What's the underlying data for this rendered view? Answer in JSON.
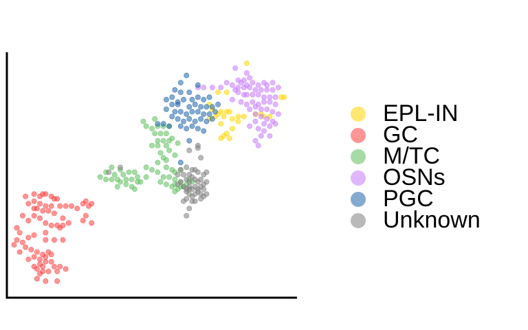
{
  "chart_data": {
    "type": "scatter",
    "title": "",
    "xlabel": "",
    "ylabel": "",
    "xlim": [
      0,
      100
    ],
    "ylim": [
      0,
      100
    ],
    "axes": "left and bottom lines only, no ticks or tick labels",
    "grid": false,
    "legend_position": "right",
    "marker_opacity": 0.55,
    "series": [
      {
        "name": "EPL-IN",
        "color": "#FFD700",
        "points": [
          [
            83,
            96
          ],
          [
            73,
            84
          ],
          [
            76,
            84
          ],
          [
            70,
            79
          ],
          [
            71,
            77
          ],
          [
            72,
            74
          ],
          [
            70,
            73
          ],
          [
            73,
            75
          ],
          [
            74,
            76
          ],
          [
            75,
            74
          ],
          [
            76,
            76
          ],
          [
            77,
            76
          ],
          [
            74,
            71
          ],
          [
            78,
            73
          ],
          [
            80,
            74
          ],
          [
            82,
            74
          ],
          [
            78,
            69
          ],
          [
            80,
            72
          ],
          [
            95,
            82
          ],
          [
            96,
            82
          ],
          [
            86,
            75
          ],
          [
            88,
            75
          ],
          [
            89,
            74
          ],
          [
            91,
            74
          ],
          [
            74,
            65
          ],
          [
            75,
            66
          ],
          [
            76,
            67
          ],
          [
            77,
            65
          ]
        ]
      },
      {
        "name": "GC",
        "color": "#FF4040",
        "points": [
          [
            6,
            41
          ],
          [
            9,
            42
          ],
          [
            11,
            41
          ],
          [
            12,
            42
          ],
          [
            13,
            42
          ],
          [
            15,
            41
          ],
          [
            16,
            40
          ],
          [
            17,
            40
          ],
          [
            7,
            38
          ],
          [
            9,
            39
          ],
          [
            11,
            38
          ],
          [
            13,
            37
          ],
          [
            15,
            37
          ],
          [
            18,
            37
          ],
          [
            9,
            36
          ],
          [
            10,
            36
          ],
          [
            12,
            35
          ],
          [
            14,
            35
          ],
          [
            16,
            34
          ],
          [
            20,
            37
          ],
          [
            22,
            37
          ],
          [
            24,
            36
          ],
          [
            26,
            38
          ],
          [
            27,
            39
          ],
          [
            28,
            37
          ],
          [
            29,
            38
          ],
          [
            27,
            33
          ],
          [
            26,
            31
          ],
          [
            29,
            30
          ],
          [
            9,
            33
          ],
          [
            11,
            32
          ],
          [
            13,
            30
          ],
          [
            15,
            29
          ],
          [
            17,
            29
          ],
          [
            19,
            29
          ],
          [
            21,
            30
          ],
          [
            5,
            33
          ],
          [
            7,
            31
          ],
          [
            3,
            28
          ],
          [
            4,
            26
          ],
          [
            7,
            24
          ],
          [
            9,
            25
          ],
          [
            13,
            26
          ],
          [
            13,
            23
          ],
          [
            16,
            23
          ],
          [
            19,
            23
          ],
          [
            5,
            22
          ],
          [
            6,
            20
          ],
          [
            4,
            18
          ],
          [
            8,
            19
          ],
          [
            10,
            18
          ],
          [
            12,
            17
          ],
          [
            14,
            18
          ],
          [
            9,
            16
          ],
          [
            11,
            15
          ],
          [
            13,
            16
          ],
          [
            15,
            17
          ],
          [
            7,
            15
          ],
          [
            11,
            13
          ],
          [
            13,
            14
          ],
          [
            15,
            14
          ],
          [
            16,
            12
          ],
          [
            9,
            12
          ],
          [
            12,
            10
          ],
          [
            14,
            10
          ],
          [
            17,
            10
          ],
          [
            11,
            9
          ],
          [
            18,
            12
          ],
          [
            10,
            7
          ],
          [
            13,
            6
          ],
          [
            17,
            6
          ],
          [
            20,
            11
          ],
          [
            3,
            23
          ],
          [
            2,
            21
          ],
          [
            19,
            32
          ],
          [
            18,
            28
          ],
          [
            10,
            11
          ],
          [
            12,
            12
          ]
        ]
      },
      {
        "name": "M/TC",
        "color": "#5FBF5F",
        "points": [
          [
            47,
            72
          ],
          [
            51,
            73
          ],
          [
            48,
            70
          ],
          [
            50,
            69
          ],
          [
            52,
            70
          ],
          [
            54,
            70
          ],
          [
            56,
            70
          ],
          [
            51,
            67
          ],
          [
            53,
            67
          ],
          [
            55,
            67
          ],
          [
            52,
            64
          ],
          [
            54,
            64
          ],
          [
            56,
            64
          ],
          [
            57,
            65
          ],
          [
            50,
            62
          ],
          [
            52,
            62
          ],
          [
            55,
            62
          ],
          [
            59,
            63
          ],
          [
            53,
            59
          ],
          [
            56,
            60
          ],
          [
            54,
            57
          ],
          [
            58,
            58
          ],
          [
            52,
            55
          ],
          [
            55,
            56
          ],
          [
            36,
            53
          ],
          [
            39,
            52
          ],
          [
            34,
            51
          ],
          [
            37,
            50
          ],
          [
            40,
            50
          ],
          [
            42,
            51
          ],
          [
            44,
            51
          ],
          [
            45,
            49
          ],
          [
            32,
            49
          ],
          [
            34,
            48
          ],
          [
            36,
            48
          ],
          [
            38,
            48
          ],
          [
            39,
            47
          ],
          [
            41,
            48
          ],
          [
            43,
            48
          ],
          [
            46,
            47
          ],
          [
            48,
            49
          ],
          [
            41,
            46
          ],
          [
            43,
            45
          ],
          [
            44,
            44
          ],
          [
            38,
            45
          ],
          [
            45,
            47
          ],
          [
            55,
            53
          ],
          [
            57,
            52
          ],
          [
            58,
            51
          ],
          [
            60,
            52
          ],
          [
            52,
            51
          ],
          [
            54,
            49
          ],
          [
            56,
            49
          ],
          [
            58,
            48
          ],
          [
            53,
            47
          ],
          [
            55,
            46
          ],
          [
            58,
            46
          ],
          [
            60,
            45
          ],
          [
            59,
            44
          ],
          [
            61,
            45
          ],
          [
            62,
            46
          ],
          [
            63,
            48
          ],
          [
            64,
            47
          ],
          [
            60,
            47
          ],
          [
            57,
            45
          ],
          [
            58,
            43
          ],
          [
            48,
            53
          ],
          [
            50,
            52
          ]
        ]
      },
      {
        "name": "OSNs",
        "color": "#C77CFF",
        "points": [
          [
            79,
            94
          ],
          [
            83,
            92
          ],
          [
            84,
            90
          ],
          [
            80,
            89
          ],
          [
            82,
            89
          ],
          [
            85,
            88
          ],
          [
            87,
            87
          ],
          [
            89,
            88
          ],
          [
            90,
            87
          ],
          [
            92,
            88
          ],
          [
            76,
            88
          ],
          [
            78,
            87
          ],
          [
            80,
            86
          ],
          [
            82,
            86
          ],
          [
            84,
            86
          ],
          [
            86,
            85
          ],
          [
            88,
            85
          ],
          [
            90,
            85
          ],
          [
            92,
            85
          ],
          [
            94,
            86
          ],
          [
            71,
            86
          ],
          [
            74,
            86
          ],
          [
            66,
            86
          ],
          [
            68,
            86
          ],
          [
            80,
            84
          ],
          [
            82,
            83
          ],
          [
            85,
            83
          ],
          [
            87,
            83
          ],
          [
            89,
            82
          ],
          [
            91,
            82
          ],
          [
            93,
            82
          ],
          [
            85,
            80
          ],
          [
            87,
            79
          ],
          [
            89,
            80
          ],
          [
            91,
            80
          ],
          [
            93,
            79
          ],
          [
            86,
            78
          ],
          [
            88,
            77
          ],
          [
            90,
            77
          ],
          [
            92,
            76
          ],
          [
            94,
            75
          ],
          [
            84,
            77
          ],
          [
            86,
            75
          ],
          [
            88,
            74
          ],
          [
            90,
            73
          ],
          [
            92,
            72
          ],
          [
            86,
            72
          ],
          [
            89,
            71
          ],
          [
            91,
            70
          ],
          [
            93,
            71
          ],
          [
            84,
            70
          ],
          [
            87,
            69
          ],
          [
            89,
            68
          ],
          [
            88,
            66
          ],
          [
            91,
            66
          ],
          [
            86,
            64
          ],
          [
            87,
            62
          ],
          [
            81,
            80
          ],
          [
            83,
            79
          ],
          [
            78,
            81
          ],
          [
            83,
            87
          ],
          [
            81,
            88
          ],
          [
            79,
            85
          ],
          [
            83,
            83
          ]
        ]
      },
      {
        "name": "PGC",
        "color": "#2166AC",
        "points": [
          [
            62,
            91
          ],
          [
            60,
            88
          ],
          [
            58,
            85
          ],
          [
            60,
            84
          ],
          [
            66,
            87
          ],
          [
            64,
            81
          ],
          [
            66,
            82
          ],
          [
            68,
            81
          ],
          [
            70,
            82
          ],
          [
            55,
            81
          ],
          [
            57,
            79
          ],
          [
            59,
            79
          ],
          [
            63,
            78
          ],
          [
            65,
            79
          ],
          [
            67,
            78
          ],
          [
            69,
            78
          ],
          [
            71,
            78
          ],
          [
            73,
            79
          ],
          [
            55,
            77
          ],
          [
            58,
            76
          ],
          [
            60,
            76
          ],
          [
            62,
            75
          ],
          [
            64,
            76
          ],
          [
            66,
            76
          ],
          [
            68,
            75
          ],
          [
            70,
            75
          ],
          [
            72,
            76
          ],
          [
            57,
            74
          ],
          [
            59,
            73
          ],
          [
            61,
            72
          ],
          [
            63,
            73
          ],
          [
            65,
            72
          ],
          [
            67,
            73
          ],
          [
            69,
            72
          ],
          [
            71,
            73
          ],
          [
            52,
            71
          ],
          [
            54,
            71
          ],
          [
            56,
            70
          ],
          [
            60,
            70
          ],
          [
            62,
            69
          ],
          [
            64,
            70
          ],
          [
            66,
            69
          ],
          [
            68,
            68
          ],
          [
            63,
            64
          ],
          [
            60,
            55
          ],
          [
            59,
            80
          ],
          [
            61,
            81
          ],
          [
            63,
            84
          ],
          [
            57,
            82
          ]
        ]
      },
      {
        "name": "Unknown",
        "color": "#808080",
        "points": [
          [
            66,
            62
          ],
          [
            66,
            61
          ],
          [
            63,
            60
          ],
          [
            67,
            57
          ],
          [
            39,
            53
          ],
          [
            35,
            51
          ],
          [
            60,
            52
          ],
          [
            62,
            53
          ],
          [
            64,
            52
          ],
          [
            65,
            52
          ],
          [
            59,
            50
          ],
          [
            61,
            50
          ],
          [
            63,
            50
          ],
          [
            64,
            49
          ],
          [
            66,
            51
          ],
          [
            68,
            50
          ],
          [
            69,
            51
          ],
          [
            62,
            48
          ],
          [
            63,
            47
          ],
          [
            65,
            48
          ],
          [
            66,
            47
          ],
          [
            67,
            48
          ],
          [
            69,
            47
          ],
          [
            59,
            46
          ],
          [
            61,
            45
          ],
          [
            63,
            45
          ],
          [
            64,
            44
          ],
          [
            65,
            45
          ],
          [
            66,
            44
          ],
          [
            67,
            45
          ],
          [
            68,
            44
          ],
          [
            62,
            43
          ],
          [
            63,
            42
          ],
          [
            64,
            41
          ],
          [
            65,
            42
          ],
          [
            66,
            43
          ],
          [
            67,
            42
          ],
          [
            68,
            41
          ],
          [
            69,
            42
          ],
          [
            62,
            40
          ],
          [
            64,
            39
          ],
          [
            65,
            39
          ],
          [
            67,
            40
          ],
          [
            61,
            39
          ],
          [
            63,
            36
          ],
          [
            62,
            33
          ],
          [
            60,
            47
          ],
          [
            68,
            46
          ],
          [
            62,
            44
          ],
          [
            63,
            44
          ]
        ]
      }
    ]
  }
}
